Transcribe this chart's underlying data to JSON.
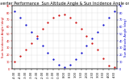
{
  "title": "Solar PV/Inverter Performance  Sun Altitude Angle & Sun Incidence Angle on PV Panels",
  "sun_altitude_x": [
    -4.5,
    -4.0,
    -3.5,
    -3.0,
    -2.5,
    -2.0,
    -1.5,
    -1.0,
    -0.5,
    0.0,
    0.5,
    1.0,
    1.5,
    2.0,
    2.5,
    3.0,
    3.5,
    4.0,
    4.5
  ],
  "sun_altitude_y": [
    82,
    73,
    63,
    53,
    43,
    33,
    23,
    14,
    6,
    2,
    6,
    14,
    23,
    33,
    43,
    53,
    63,
    73,
    82
  ],
  "sun_incidence_x": [
    -4.5,
    -4.0,
    -3.5,
    -3.0,
    -2.5,
    -2.0,
    -1.5,
    -1.0,
    -0.5,
    0.0,
    0.5,
    1.0,
    1.5,
    2.0,
    2.5,
    3.0,
    3.5,
    4.0,
    4.5
  ],
  "sun_incidence_y": [
    10,
    18,
    27,
    37,
    47,
    57,
    67,
    73,
    77,
    78,
    73,
    67,
    57,
    47,
    37,
    27,
    15,
    5,
    2
  ],
  "altitude_color": "#0000cc",
  "incidence_color": "#cc0000",
  "bg_color": "#ffffff",
  "grid_color": "#bbbbbb",
  "ylabel_left": "Sun Incidence Angle (deg)",
  "ylabel_right": "Sun Altitude Angle (deg)",
  "left_ylim": [
    0,
    90
  ],
  "right_ylim": [
    0,
    90
  ],
  "tick_positions": [
    -4.5,
    -4.0,
    -3.5,
    -3.0,
    -2.5,
    -2.0,
    -1.5,
    -1.0,
    -0.5,
    0.0,
    0.5,
    1.0,
    1.5,
    2.0,
    2.5,
    3.0,
    3.5,
    4.0,
    4.5
  ],
  "tick_labels": [
    "-4:30",
    "-4:00",
    "-3:30",
    "-3:00",
    "-2:30",
    "-2:00",
    "-1:30",
    "-1:00",
    "-0:30",
    "0:00",
    "0:30",
    "1:00",
    "1:30",
    "2:00",
    "2:30",
    "3:00",
    "3:30",
    "4:00",
    "4:30"
  ],
  "title_fontsize": 3.5,
  "label_fontsize": 2.8,
  "tick_fontsize": 2.5,
  "marker_size": 1.2
}
